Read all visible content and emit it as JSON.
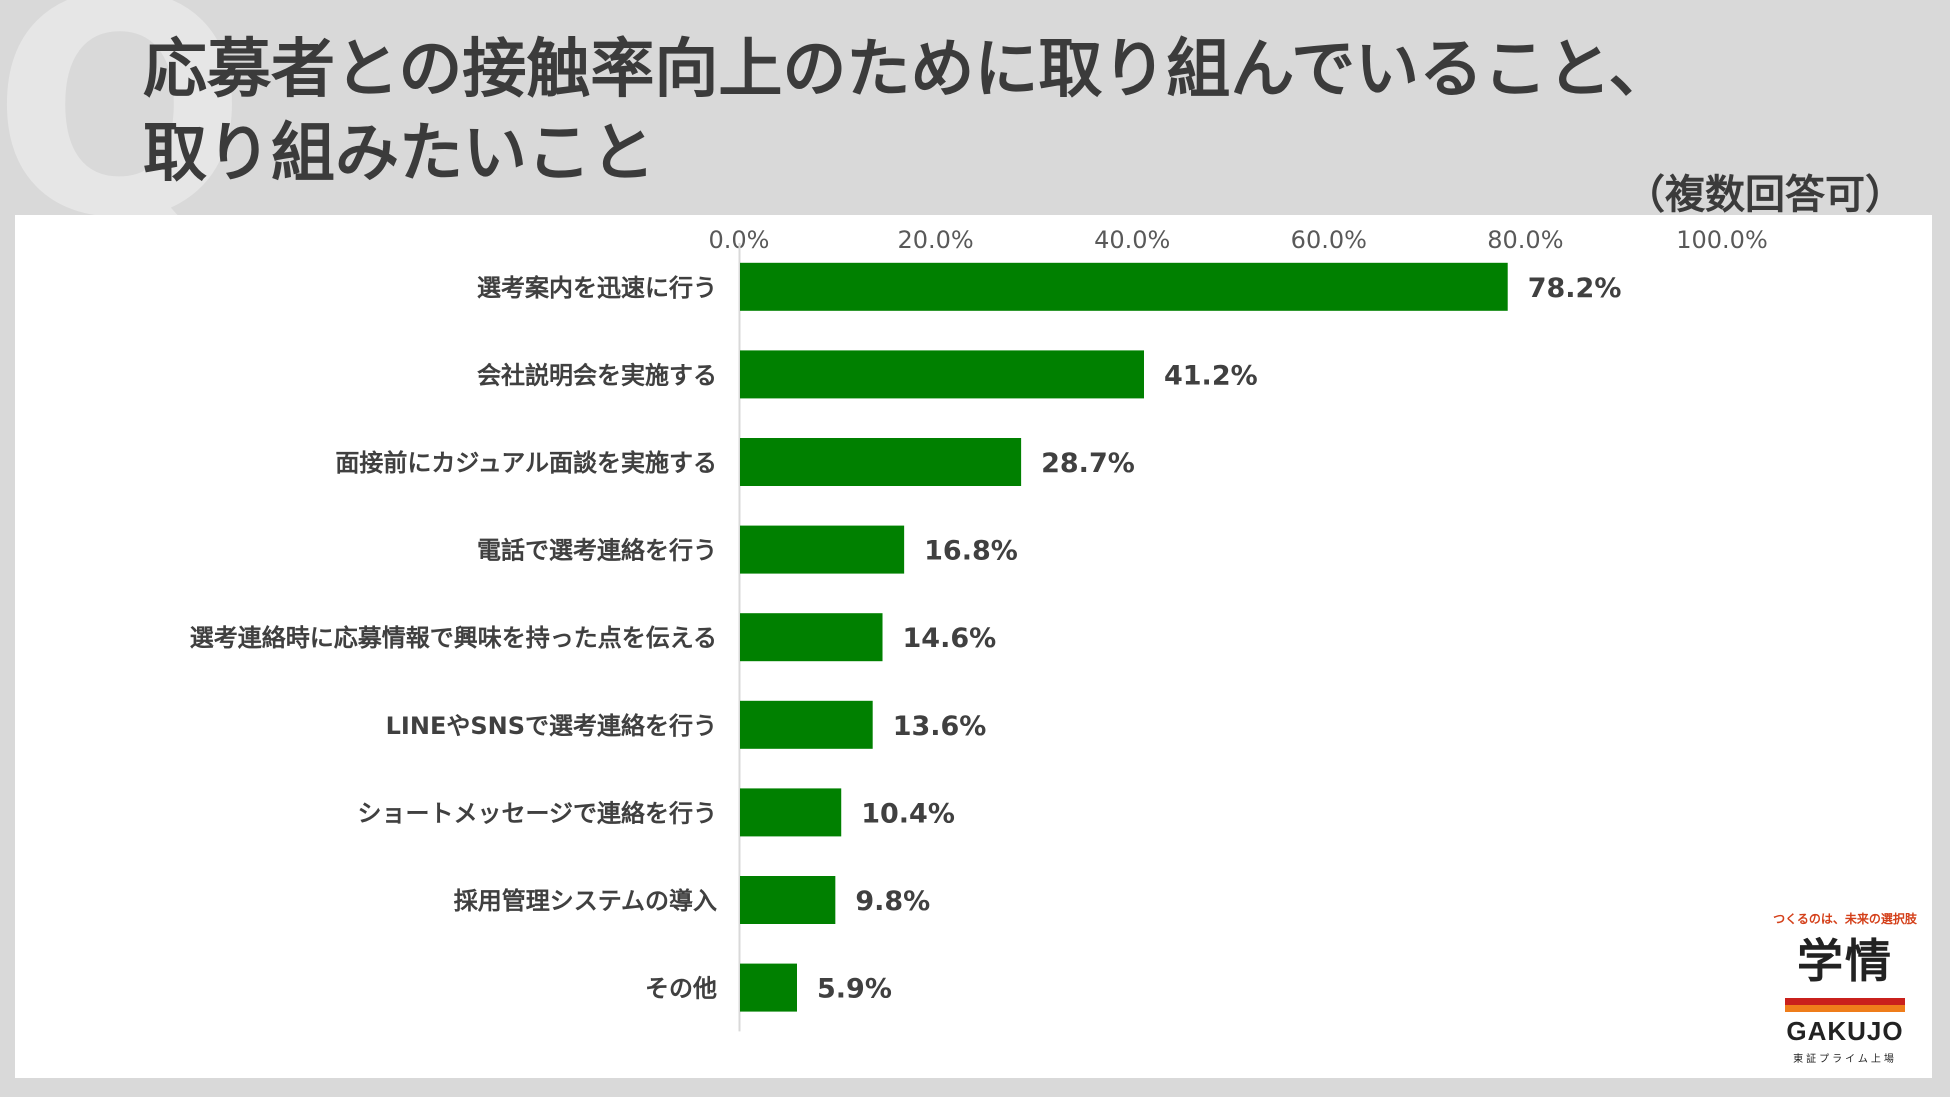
{
  "header": {
    "bg_letter": "Q",
    "title_line1": "応募者との接触率向上のために取り組んでいること、",
    "title_line2": "取り組みたいこと",
    "note": "（複数回答可）"
  },
  "chart_data": {
    "type": "bar",
    "orientation": "horizontal",
    "categories": [
      "選考案内を迅速に行う",
      "会社説明会を実施する",
      "面接前にカジュアル面談を実施する",
      "電話で選考連絡を行う",
      "選考連絡時に応募情報で興味を持った点を伝える",
      "LINEやSNSで選考連絡を行う",
      "ショートメッセージで連絡を行う",
      "採用管理システムの導入",
      "その他"
    ],
    "values": [
      78.2,
      41.2,
      28.7,
      16.8,
      14.6,
      13.6,
      10.4,
      9.8,
      5.9
    ],
    "value_labels": [
      "78.2%",
      "41.2%",
      "28.7%",
      "16.8%",
      "14.6%",
      "13.6%",
      "10.4%",
      "9.8%",
      "5.9%"
    ],
    "xlim": [
      0,
      100
    ],
    "ticks": [
      0,
      20,
      40,
      60,
      80,
      100
    ],
    "tick_labels": [
      "0.0%",
      "20.0%",
      "40.0%",
      "60.0%",
      "80.0%",
      "100.0%"
    ],
    "axis_position": "top",
    "grid": false,
    "bar_color": "#008000"
  },
  "logo": {
    "tagline": "つくるのは、未来の選択肢",
    "kanji": "学情",
    "en": "GAKUJO",
    "sub": "東証プライム上場"
  }
}
